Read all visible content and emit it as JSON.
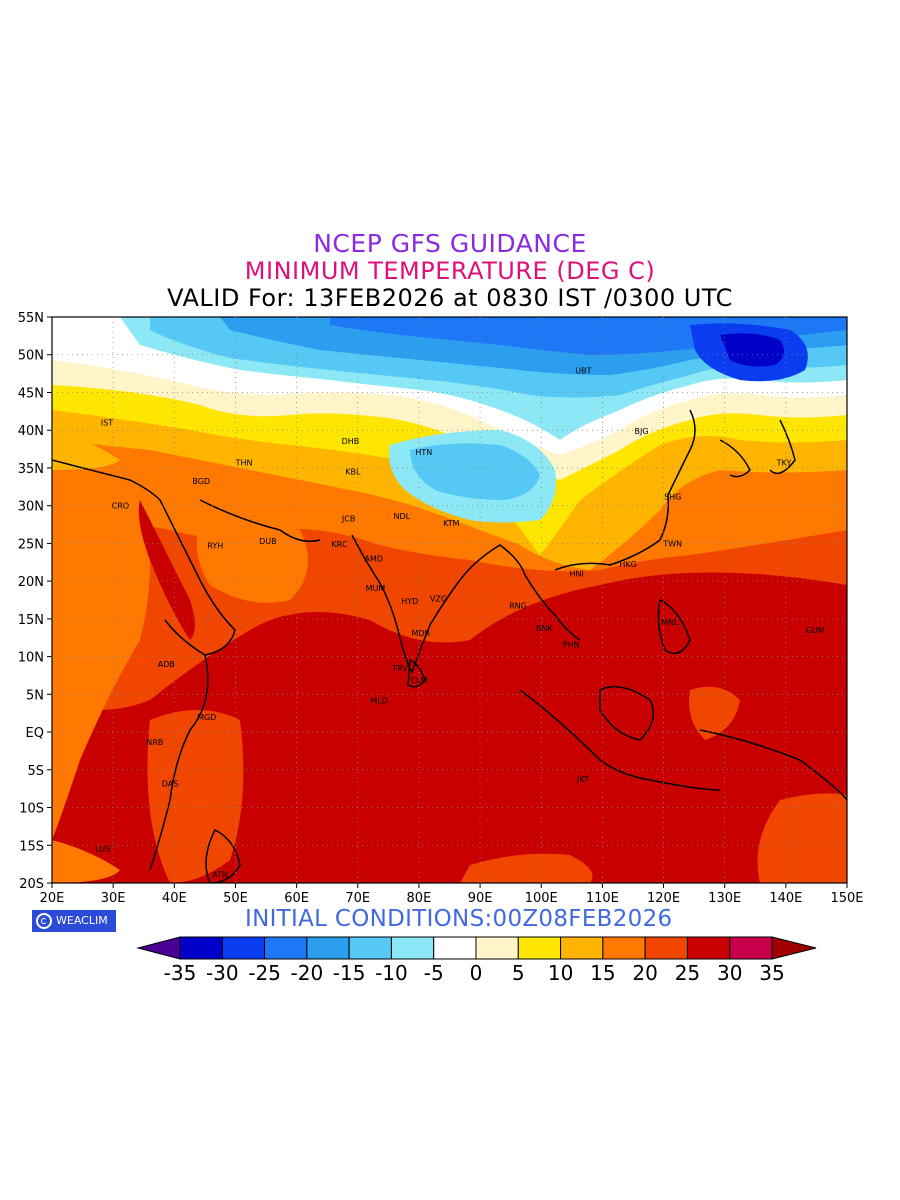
{
  "header": {
    "title": "NCEP GFS GUIDANCE",
    "subtitle": "MINIMUM TEMPERATURE (DEG C)",
    "valid": "VALID For: 13FEB2026 at 0830 IST /0300 UTC"
  },
  "footer": {
    "badge": "WEACLIM",
    "initial_conditions": "INITIAL CONDITIONS:00Z08FEB2026"
  },
  "map": {
    "lon_range": [
      20,
      150
    ],
    "lat_range": [
      -20,
      55
    ],
    "lon_ticks": [
      "20E",
      "30E",
      "40E",
      "50E",
      "60E",
      "70E",
      "80E",
      "90E",
      "100E",
      "110E",
      "120E",
      "130E",
      "140E",
      "150E"
    ],
    "lat_ticks": [
      "55N",
      "50N",
      "45N",
      "40N",
      "35N",
      "30N",
      "25N",
      "20N",
      "15N",
      "10N",
      "5N",
      "EQ",
      "5S",
      "10S",
      "15S",
      "20S"
    ],
    "stations": [
      {
        "code": "UBT",
        "lon": 106.9,
        "lat": 47.9
      },
      {
        "code": "BJG",
        "lon": 116.4,
        "lat": 39.9
      },
      {
        "code": "TKY",
        "lon": 139.7,
        "lat": 35.7
      },
      {
        "code": "SHG",
        "lon": 121.5,
        "lat": 31.2
      },
      {
        "code": "TWN",
        "lon": 121.5,
        "lat": 25.0
      },
      {
        "code": "HKG",
        "lon": 114.2,
        "lat": 22.3
      },
      {
        "code": "HNI",
        "lon": 105.8,
        "lat": 21.0
      },
      {
        "code": "RNG",
        "lon": 96.2,
        "lat": 16.8
      },
      {
        "code": "BNK",
        "lon": 100.5,
        "lat": 13.8
      },
      {
        "code": "PHN",
        "lon": 104.9,
        "lat": 11.6
      },
      {
        "code": "MNL",
        "lon": 121.0,
        "lat": 14.6
      },
      {
        "code": "GUM",
        "lon": 144.8,
        "lat": 13.5
      },
      {
        "code": "JKT",
        "lon": 106.8,
        "lat": -6.2
      },
      {
        "code": "HTN",
        "lon": 80.8,
        "lat": 37.1
      },
      {
        "code": "DHB",
        "lon": 68.8,
        "lat": 38.6
      },
      {
        "code": "KBL",
        "lon": 69.2,
        "lat": 34.5
      },
      {
        "code": "JCB",
        "lon": 68.5,
        "lat": 28.3
      },
      {
        "code": "KRC",
        "lon": 67.0,
        "lat": 24.9
      },
      {
        "code": "NDL",
        "lon": 77.2,
        "lat": 28.6
      },
      {
        "code": "KTM",
        "lon": 85.3,
        "lat": 27.7
      },
      {
        "code": "AMD",
        "lon": 72.6,
        "lat": 23.0
      },
      {
        "code": "MUM",
        "lon": 72.9,
        "lat": 19.1
      },
      {
        "code": "HYD",
        "lon": 78.5,
        "lat": 17.4
      },
      {
        "code": "VZG",
        "lon": 83.2,
        "lat": 17.7
      },
      {
        "code": "MDR",
        "lon": 80.3,
        "lat": 13.1
      },
      {
        "code": "TRV",
        "lon": 76.9,
        "lat": 8.5
      },
      {
        "code": "CLM",
        "lon": 80.0,
        "lat": 6.9
      },
      {
        "code": "MLD",
        "lon": 73.5,
        "lat": 4.2
      },
      {
        "code": "THN",
        "lon": 51.4,
        "lat": 35.7
      },
      {
        "code": "BGD",
        "lon": 44.4,
        "lat": 33.3
      },
      {
        "code": "IST",
        "lon": 29.0,
        "lat": 41.0
      },
      {
        "code": "CRO",
        "lon": 31.2,
        "lat": 30.0
      },
      {
        "code": "RYH",
        "lon": 46.7,
        "lat": 24.7
      },
      {
        "code": "DUB",
        "lon": 55.3,
        "lat": 25.3
      },
      {
        "code": "ADB",
        "lon": 38.7,
        "lat": 9.0
      },
      {
        "code": "MGD",
        "lon": 45.3,
        "lat": 2.0
      },
      {
        "code": "NRB",
        "lon": 36.8,
        "lat": -1.3
      },
      {
        "code": "DAS",
        "lon": 39.3,
        "lat": -6.8
      },
      {
        "code": "LUS",
        "lon": 28.3,
        "lat": -15.4
      },
      {
        "code": "ATN",
        "lon": 47.5,
        "lat": -18.9
      }
    ]
  },
  "colorbar": {
    "labels": [
      "-35",
      "-30",
      "-25",
      "-20",
      "-15",
      "-10",
      "-5",
      "0",
      "5",
      "10",
      "15",
      "20",
      "25",
      "30",
      "35"
    ],
    "colors": [
      "#4b0095",
      "#0000c8",
      "#0a3cf0",
      "#1e78f5",
      "#2c9ef0",
      "#55c8f5",
      "#8ce8f5",
      "#ffffff",
      "#fff5c8",
      "#ffe600",
      "#ffb400",
      "#ff7800",
      "#f04600",
      "#c80000",
      "#c8004b",
      "#a00000"
    ]
  }
}
